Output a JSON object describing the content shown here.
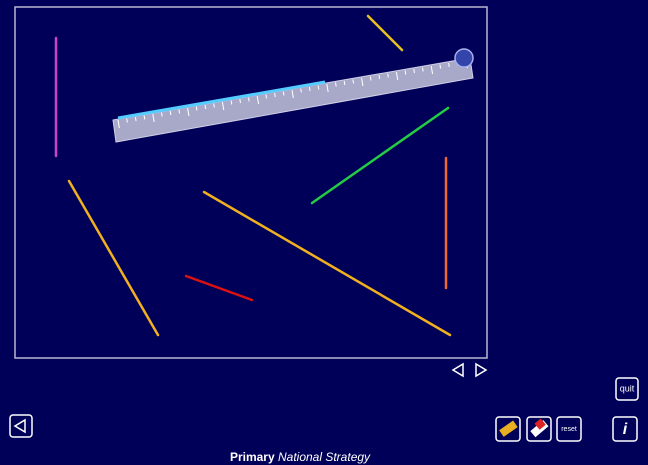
{
  "buttons": {
    "quit": "quit",
    "reset": "reset",
    "info": "i"
  },
  "footer": {
    "primary": "Primary",
    "strategy": "National Strategy"
  }
}
